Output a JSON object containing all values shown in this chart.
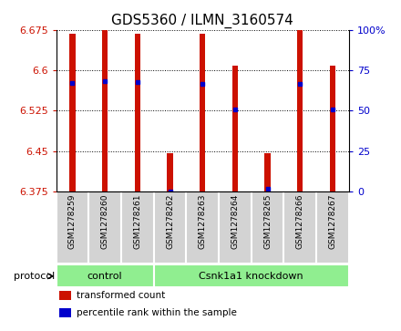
{
  "title": "GDS5360 / ILMN_3160574",
  "samples": [
    "GSM1278259",
    "GSM1278260",
    "GSM1278261",
    "GSM1278262",
    "GSM1278263",
    "GSM1278264",
    "GSM1278265",
    "GSM1278266",
    "GSM1278267"
  ],
  "bar_values": [
    6.668,
    6.675,
    6.668,
    6.447,
    6.668,
    6.608,
    6.447,
    6.675,
    6.608
  ],
  "percentile_values": [
    6.577,
    6.58,
    6.578,
    6.376,
    6.575,
    6.527,
    6.38,
    6.575,
    6.527
  ],
  "ylim": [
    6.375,
    6.675
  ],
  "yticks": [
    6.375,
    6.45,
    6.525,
    6.6,
    6.675
  ],
  "right_yticks": [
    0,
    25,
    50,
    75,
    100
  ],
  "bar_color": "#cc1100",
  "percentile_color": "#0000cc",
  "bar_width": 0.18,
  "control_count": 3,
  "ctrl_label": "control",
  "csnk_label": "Csnk1a1 knockdown",
  "group_color": "#90ee90",
  "sample_box_color": "#d3d3d3",
  "protocol_label": "protocol",
  "legend_items": [
    {
      "label": "transformed count",
      "color": "#cc1100"
    },
    {
      "label": "percentile rank within the sample",
      "color": "#0000cc"
    }
  ],
  "grid_linestyle": "dotted",
  "title_fontsize": 11,
  "tick_fontsize": 8,
  "left_tick_color": "#cc1100",
  "right_tick_color": "#0000cc"
}
